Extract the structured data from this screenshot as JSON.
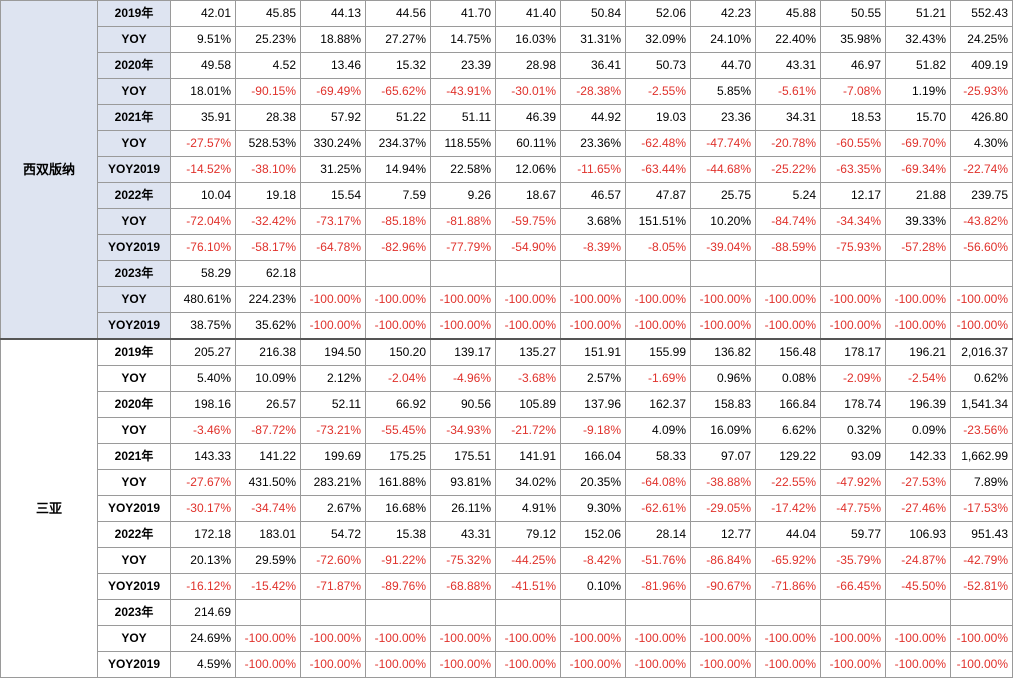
{
  "sections": [
    {
      "region": "西双版纳",
      "rows": [
        {
          "label": "2019年",
          "values": [
            "42.01",
            "45.85",
            "44.13",
            "44.56",
            "41.70",
            "41.40",
            "50.84",
            "52.06",
            "42.23",
            "45.88",
            "50.55",
            "51.21",
            "552.43"
          ]
        },
        {
          "label": "YOY",
          "values": [
            "9.51%",
            "25.23%",
            "18.88%",
            "27.27%",
            "14.75%",
            "16.03%",
            "31.31%",
            "32.09%",
            "24.10%",
            "22.40%",
            "35.98%",
            "32.43%",
            "24.25%"
          ]
        },
        {
          "label": "2020年",
          "values": [
            "49.58",
            "4.52",
            "13.46",
            "15.32",
            "23.39",
            "28.98",
            "36.41",
            "50.73",
            "44.70",
            "43.31",
            "46.97",
            "51.82",
            "409.19"
          ]
        },
        {
          "label": "YOY",
          "values": [
            "18.01%",
            "-90.15%",
            "-69.49%",
            "-65.62%",
            "-43.91%",
            "-30.01%",
            "-28.38%",
            "-2.55%",
            "5.85%",
            "-5.61%",
            "-7.08%",
            "1.19%",
            "-25.93%"
          ]
        },
        {
          "label": "2021年",
          "values": [
            "35.91",
            "28.38",
            "57.92",
            "51.22",
            "51.11",
            "46.39",
            "44.92",
            "19.03",
            "23.36",
            "34.31",
            "18.53",
            "15.70",
            "426.80"
          ]
        },
        {
          "label": "YOY",
          "values": [
            "-27.57%",
            "528.53%",
            "330.24%",
            "234.37%",
            "118.55%",
            "60.11%",
            "23.36%",
            "-62.48%",
            "-47.74%",
            "-20.78%",
            "-60.55%",
            "-69.70%",
            "4.30%"
          ]
        },
        {
          "label": "YOY2019",
          "values": [
            "-14.52%",
            "-38.10%",
            "31.25%",
            "14.94%",
            "22.58%",
            "12.06%",
            "-11.65%",
            "-63.44%",
            "-44.68%",
            "-25.22%",
            "-63.35%",
            "-69.34%",
            "-22.74%"
          ]
        },
        {
          "label": "2022年",
          "values": [
            "10.04",
            "19.18",
            "15.54",
            "7.59",
            "9.26",
            "18.67",
            "46.57",
            "47.87",
            "25.75",
            "5.24",
            "12.17",
            "21.88",
            "239.75"
          ]
        },
        {
          "label": "YOY",
          "values": [
            "-72.04%",
            "-32.42%",
            "-73.17%",
            "-85.18%",
            "-81.88%",
            "-59.75%",
            "3.68%",
            "151.51%",
            "10.20%",
            "-84.74%",
            "-34.34%",
            "39.33%",
            "-43.82%"
          ]
        },
        {
          "label": "YOY2019",
          "values": [
            "-76.10%",
            "-58.17%",
            "-64.78%",
            "-82.96%",
            "-77.79%",
            "-54.90%",
            "-8.39%",
            "-8.05%",
            "-39.04%",
            "-88.59%",
            "-75.93%",
            "-57.28%",
            "-56.60%"
          ]
        },
        {
          "label": "2023年",
          "values": [
            "58.29",
            "62.18",
            "",
            "",
            "",
            "",
            "",
            "",
            "",
            "",
            "",
            "",
            ""
          ]
        },
        {
          "label": "YOY",
          "values": [
            "480.61%",
            "224.23%",
            "-100.00%",
            "-100.00%",
            "-100.00%",
            "-100.00%",
            "-100.00%",
            "-100.00%",
            "-100.00%",
            "-100.00%",
            "-100.00%",
            "-100.00%",
            "-100.00%"
          ]
        },
        {
          "label": "YOY2019",
          "values": [
            "38.75%",
            "35.62%",
            "-100.00%",
            "-100.00%",
            "-100.00%",
            "-100.00%",
            "-100.00%",
            "-100.00%",
            "-100.00%",
            "-100.00%",
            "-100.00%",
            "-100.00%",
            "-100.00%"
          ]
        }
      ]
    },
    {
      "region": "三亚",
      "rows": [
        {
          "label": "2019年",
          "values": [
            "205.27",
            "216.38",
            "194.50",
            "150.20",
            "139.17",
            "135.27",
            "151.91",
            "155.99",
            "136.82",
            "156.48",
            "178.17",
            "196.21",
            "2,016.37"
          ]
        },
        {
          "label": "YOY",
          "values": [
            "5.40%",
            "10.09%",
            "2.12%",
            "-2.04%",
            "-4.96%",
            "-3.68%",
            "2.57%",
            "-1.69%",
            "0.96%",
            "0.08%",
            "-2.09%",
            "-2.54%",
            "0.62%"
          ]
        },
        {
          "label": "2020年",
          "values": [
            "198.16",
            "26.57",
            "52.11",
            "66.92",
            "90.56",
            "105.89",
            "137.96",
            "162.37",
            "158.83",
            "166.84",
            "178.74",
            "196.39",
            "1,541.34"
          ]
        },
        {
          "label": "YOY",
          "values": [
            "-3.46%",
            "-87.72%",
            "-73.21%",
            "-55.45%",
            "-34.93%",
            "-21.72%",
            "-9.18%",
            "4.09%",
            "16.09%",
            "6.62%",
            "0.32%",
            "0.09%",
            "-23.56%"
          ]
        },
        {
          "label": "2021年",
          "values": [
            "143.33",
            "141.22",
            "199.69",
            "175.25",
            "175.51",
            "141.91",
            "166.04",
            "58.33",
            "97.07",
            "129.22",
            "93.09",
            "142.33",
            "1,662.99"
          ]
        },
        {
          "label": "YOY",
          "values": [
            "-27.67%",
            "431.50%",
            "283.21%",
            "161.88%",
            "93.81%",
            "34.02%",
            "20.35%",
            "-64.08%",
            "-38.88%",
            "-22.55%",
            "-47.92%",
            "-27.53%",
            "7.89%"
          ]
        },
        {
          "label": "YOY2019",
          "values": [
            "-30.17%",
            "-34.74%",
            "2.67%",
            "16.68%",
            "26.11%",
            "4.91%",
            "9.30%",
            "-62.61%",
            "-29.05%",
            "-17.42%",
            "-47.75%",
            "-27.46%",
            "-17.53%"
          ]
        },
        {
          "label": "2022年",
          "values": [
            "172.18",
            "183.01",
            "54.72",
            "15.38",
            "43.31",
            "79.12",
            "152.06",
            "28.14",
            "12.77",
            "44.04",
            "59.77",
            "106.93",
            "951.43"
          ]
        },
        {
          "label": "YOY",
          "values": [
            "20.13%",
            "29.59%",
            "-72.60%",
            "-91.22%",
            "-75.32%",
            "-44.25%",
            "-8.42%",
            "-51.76%",
            "-86.84%",
            "-65.92%",
            "-35.79%",
            "-24.87%",
            "-42.79%"
          ]
        },
        {
          "label": "YOY2019",
          "values": [
            "-16.12%",
            "-15.42%",
            "-71.87%",
            "-89.76%",
            "-68.88%",
            "-41.51%",
            "0.10%",
            "-81.96%",
            "-90.67%",
            "-71.86%",
            "-66.45%",
            "-45.50%",
            "-52.81%"
          ]
        },
        {
          "label": "2023年",
          "values": [
            "214.69",
            "",
            "",
            "",
            "",
            "",
            "",
            "",
            "",
            "",
            "",
            "",
            ""
          ]
        },
        {
          "label": "YOY",
          "values": [
            "24.69%",
            "-100.00%",
            "-100.00%",
            "-100.00%",
            "-100.00%",
            "-100.00%",
            "-100.00%",
            "-100.00%",
            "-100.00%",
            "-100.00%",
            "-100.00%",
            "-100.00%",
            "-100.00%"
          ]
        },
        {
          "label": "YOY2019",
          "values": [
            "4.59%",
            "-100.00%",
            "-100.00%",
            "-100.00%",
            "-100.00%",
            "-100.00%",
            "-100.00%",
            "-100.00%",
            "-100.00%",
            "-100.00%",
            "-100.00%",
            "-100.00%",
            "-100.00%"
          ]
        }
      ]
    }
  ]
}
